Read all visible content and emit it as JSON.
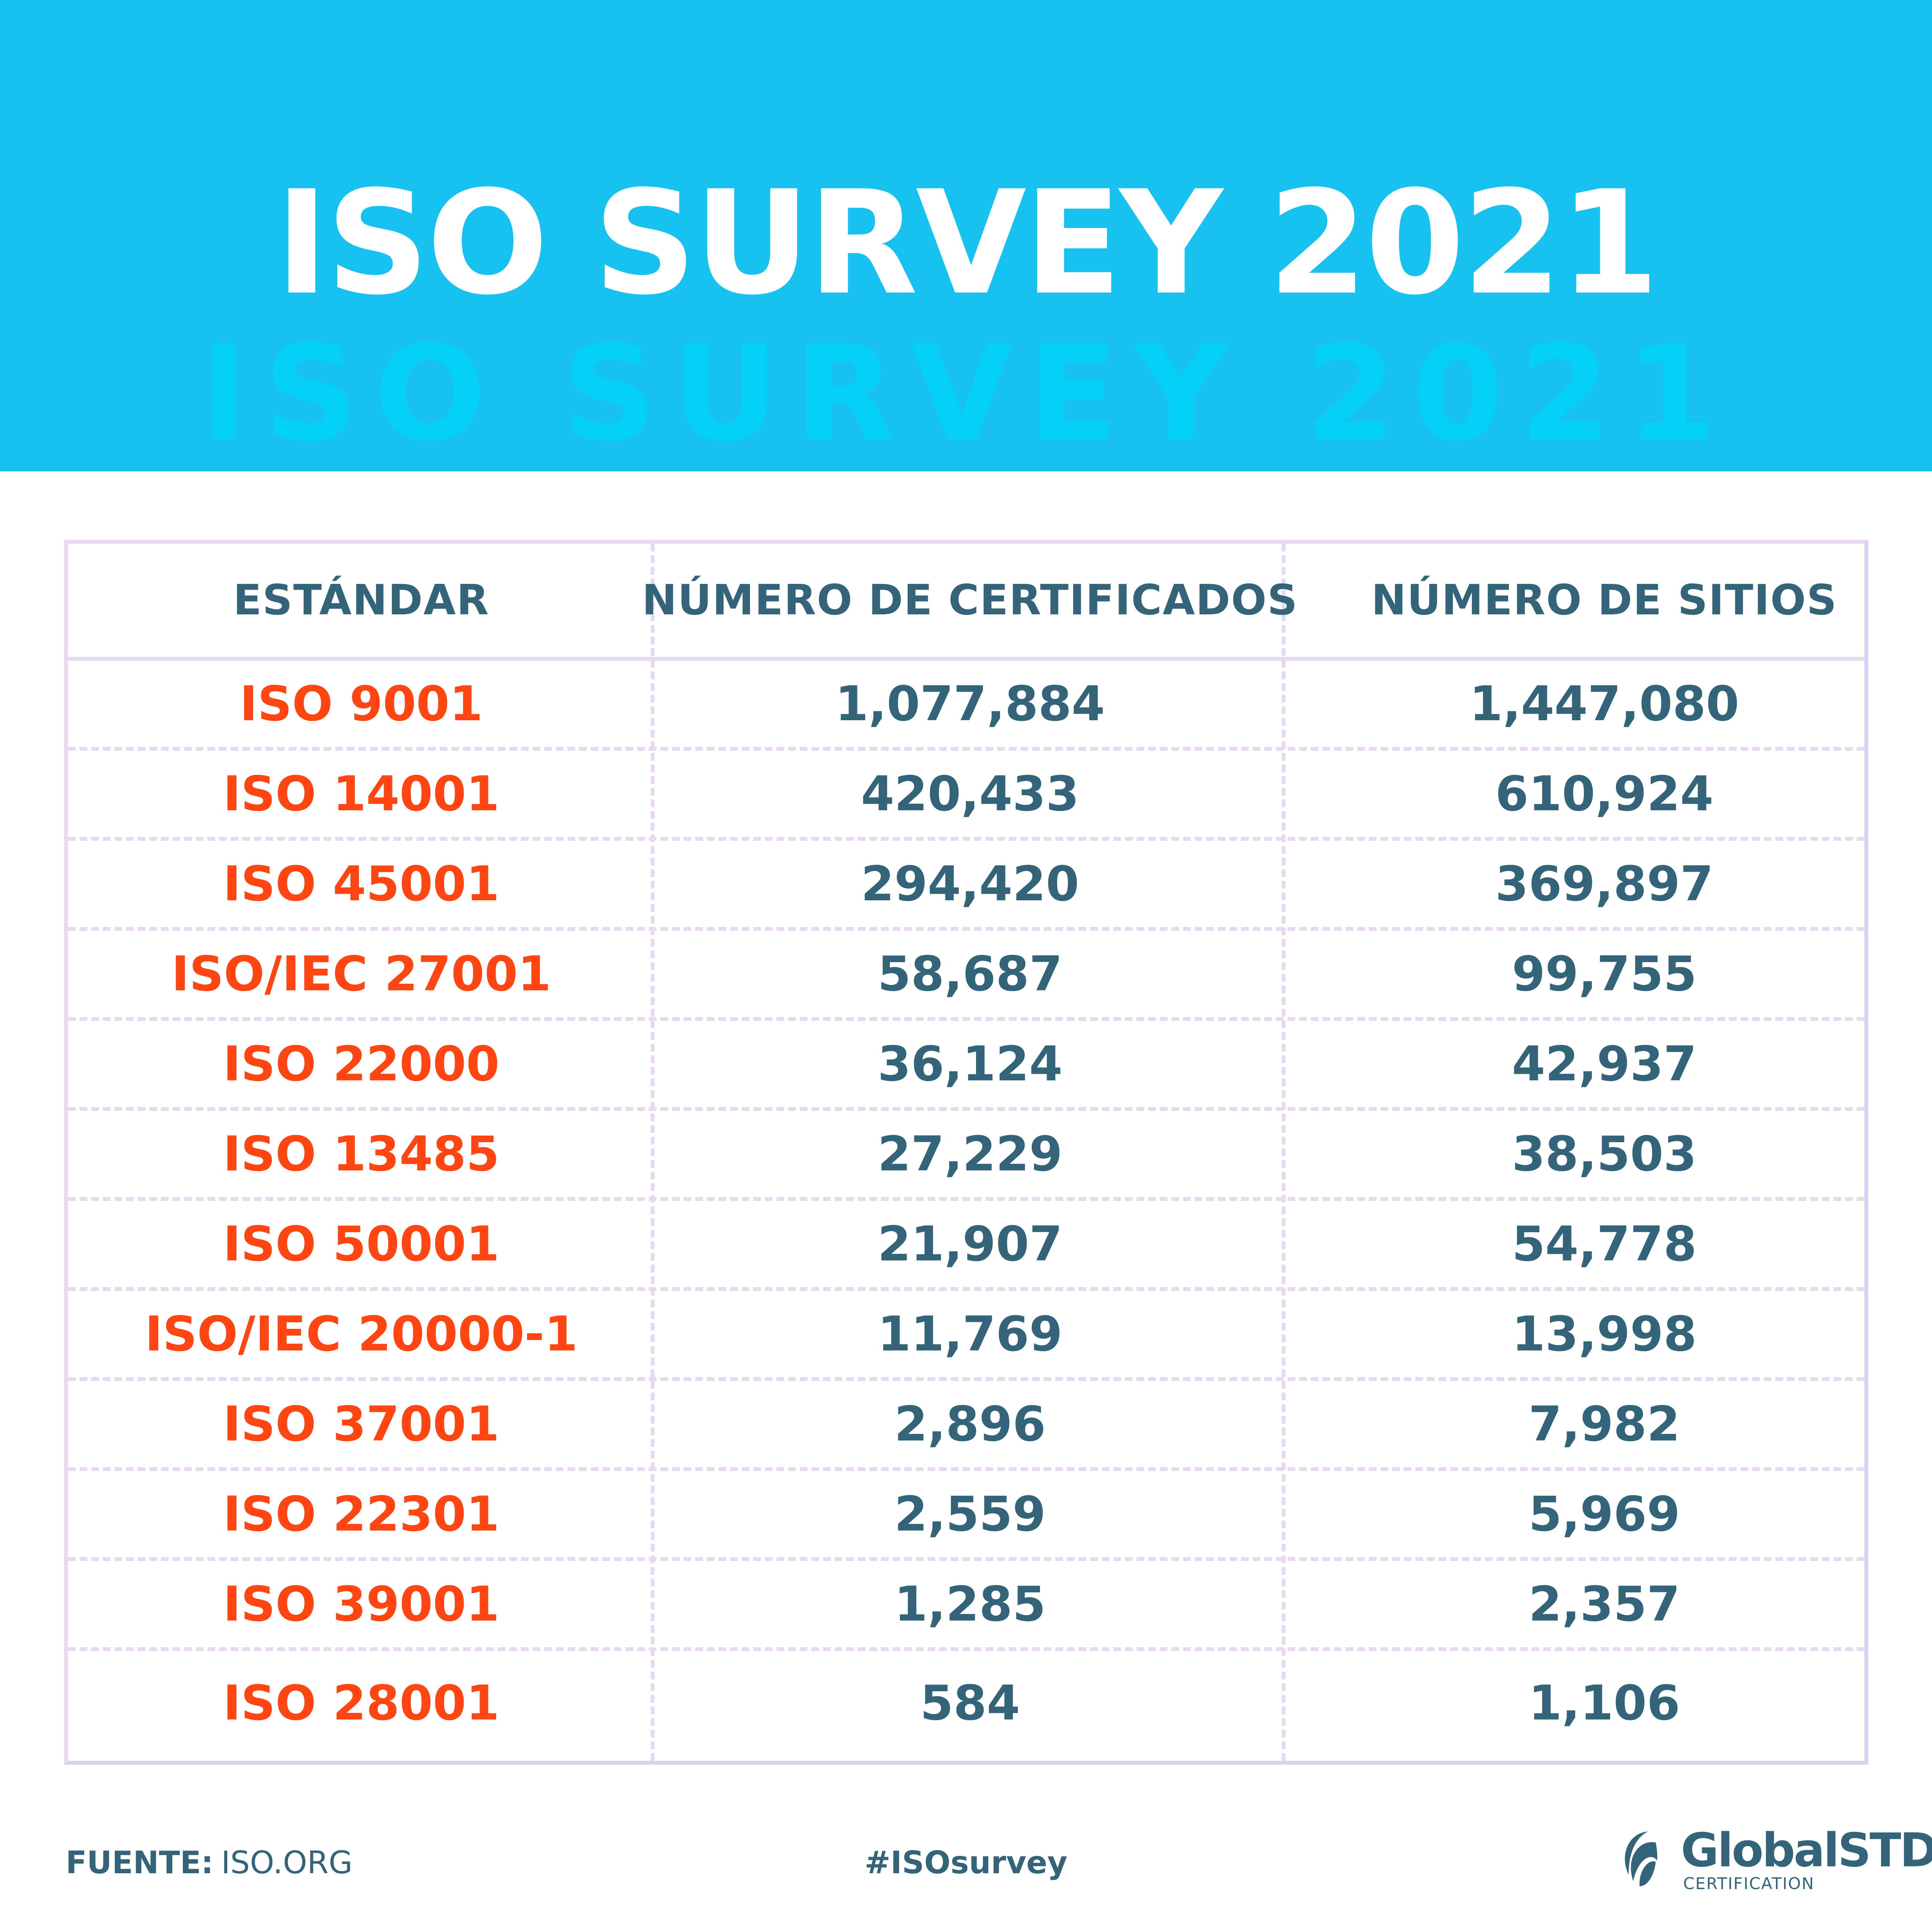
{
  "header": {
    "title": "ISO SURVEY 2021",
    "background_text": "ISO SURVEY 2021",
    "background_color": "#17C1F0"
  },
  "table": {
    "columns": [
      "ESTÁNDAR",
      "NÚMERO DE CERTIFICADOS",
      "NÚMERO DE SITIOS"
    ],
    "rows": [
      [
        "ISO 9001",
        "1,077,884",
        "1,447,080"
      ],
      [
        "ISO 14001",
        "420,433",
        "610,924"
      ],
      [
        "ISO 45001",
        "294,420",
        "369,897"
      ],
      [
        "ISO/IEC 27001",
        "58,687",
        "99,755"
      ],
      [
        "ISO 22000",
        "36,124",
        "42,937"
      ],
      [
        "ISO 13485",
        "27,229",
        "38,503"
      ],
      [
        "ISO 50001",
        "21,907",
        "54,778"
      ],
      [
        "ISO/IEC 20000-1",
        "11,769",
        "13,998"
      ],
      [
        "ISO 37001",
        "2,896",
        "7,982"
      ],
      [
        "ISO 22301",
        "2,559",
        "5,969"
      ],
      [
        "ISO 39001",
        "1,285",
        "2,357"
      ],
      [
        "ISO 28001",
        "584",
        "1,106"
      ]
    ],
    "colors": {
      "standard": "#FF4512",
      "values": "#33647A",
      "border": "#E8D8F0"
    }
  },
  "footer": {
    "source_label": "FUENTE:",
    "source_value": "ISO.ORG",
    "hashtag": "#ISOsurvey"
  },
  "logo": {
    "name": "GlobalSTD",
    "registered": "®",
    "subtitle": "CERTIFICATION"
  }
}
